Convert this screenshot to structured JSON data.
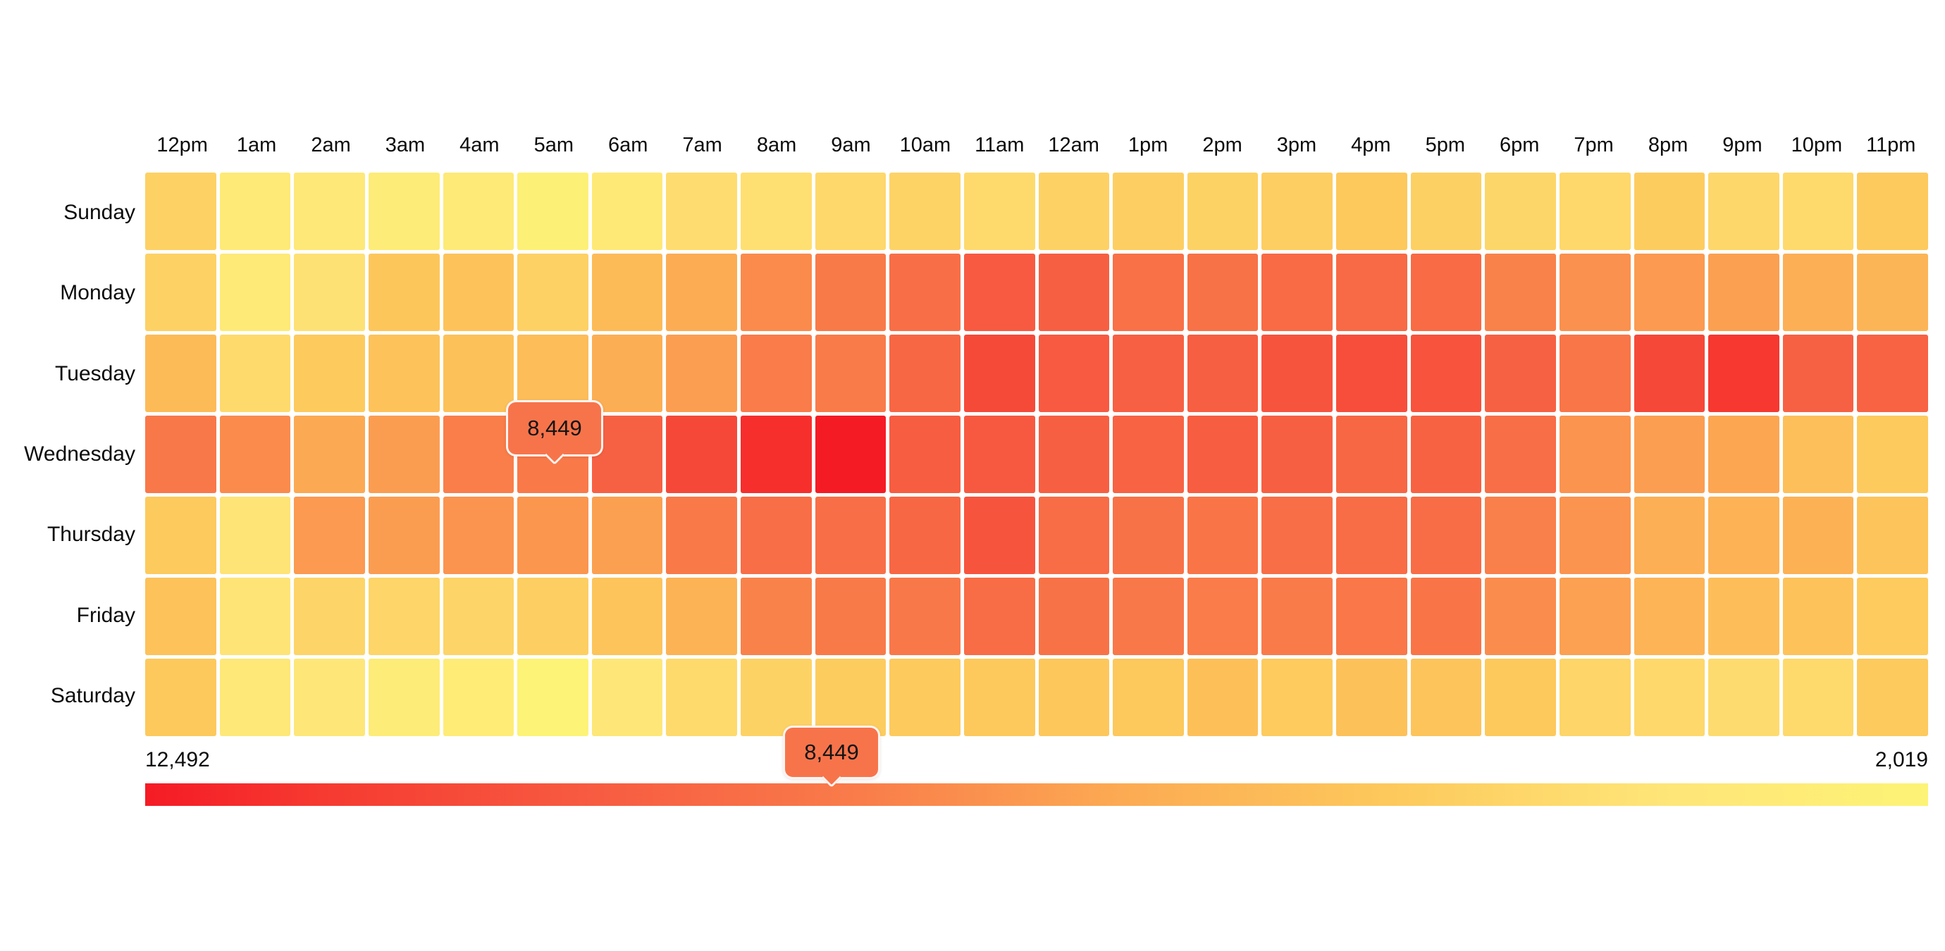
{
  "page": {
    "background": "#ffffff"
  },
  "legend": {
    "max_label": "12,492",
    "min_label": "2,019",
    "tooltip_value": "8,449"
  },
  "cell_tooltip": {
    "value": "8,449"
  },
  "colors": {
    "tooltip_bg": "#f7744b",
    "tooltip_border": "rgba(255,255,255,0.92)",
    "grid_gap": "#ffffff",
    "scale_stops": [
      [
        0.0,
        "#fdf376"
      ],
      [
        0.15,
        "#fee578"
      ],
      [
        0.3,
        "#fdc95c"
      ],
      [
        0.45,
        "#fcab53"
      ],
      [
        0.6,
        "#f97c4a"
      ],
      [
        0.75,
        "#f75b41"
      ],
      [
        0.9,
        "#f63a31"
      ],
      [
        1.0,
        "#f51b25"
      ]
    ]
  },
  "chart_data": {
    "type": "heatmap",
    "title": "",
    "x_labels": [
      "12pm",
      "1am",
      "2am",
      "3am",
      "4am",
      "5am",
      "6am",
      "7am",
      "8am",
      "9am",
      "10am",
      "11am",
      "12am",
      "1pm",
      "2pm",
      "3pm",
      "4pm",
      "5pm",
      "6pm",
      "7pm",
      "8pm",
      "9pm",
      "10pm",
      "11pm"
    ],
    "y_labels": [
      "Sunday",
      "Monday",
      "Tuesday",
      "Wednesday",
      "Thursday",
      "Friday",
      "Saturday"
    ],
    "value_range": [
      2019,
      12492
    ],
    "color_mapping": "high values red, low values yellow",
    "series": [
      {
        "name": "Sunday",
        "values": [
          4700,
          3000,
          3300,
          2800,
          3000,
          2350,
          3100,
          4100,
          3900,
          4300,
          4600,
          4200,
          4700,
          4800,
          4650,
          4900,
          5200,
          4750,
          4450,
          4300,
          5000,
          4350,
          4250,
          5100
        ]
      },
      {
        "name": "Monday",
        "values": [
          4700,
          3000,
          3800,
          5300,
          5450,
          4700,
          5900,
          6700,
          7800,
          8400,
          8900,
          9900,
          9700,
          8850,
          8800,
          9100,
          9200,
          9100,
          8100,
          7600,
          7300,
          7100,
          6500,
          6200
        ]
      },
      {
        "name": "Tuesday",
        "values": [
          5900,
          4200,
          5100,
          5550,
          5600,
          5800,
          6550,
          7150,
          8300,
          8350,
          9300,
          10700,
          9900,
          9650,
          9700,
          10200,
          10500,
          10250,
          9600,
          8600,
          10800,
          11500,
          9600,
          9500
        ]
      },
      {
        "name": "Wednesday",
        "values": [
          8500,
          7800,
          6800,
          7200,
          8250,
          8449,
          9600,
          10800,
          11800,
          12492,
          9800,
          9950,
          9700,
          9500,
          9800,
          9700,
          9300,
          9550,
          8950,
          7500,
          7150,
          6900,
          5700,
          5100
        ]
      },
      {
        "name": "Thursday",
        "values": [
          5100,
          3700,
          7300,
          7200,
          7500,
          7450,
          7100,
          8450,
          8950,
          8900,
          9300,
          10200,
          9050,
          8800,
          8650,
          8950,
          9050,
          9000,
          8200,
          7500,
          6500,
          6350,
          6400,
          5400
        ]
      },
      {
        "name": "Friday",
        "values": [
          5550,
          3650,
          4550,
          4500,
          4520,
          4800,
          5400,
          6300,
          8100,
          8400,
          8500,
          9050,
          8800,
          8500,
          8300,
          8350,
          8550,
          8650,
          7750,
          7050,
          6250,
          5750,
          5550,
          5050
        ]
      },
      {
        "name": "Saturday",
        "values": [
          5150,
          3200,
          3400,
          2800,
          2850,
          2019,
          3400,
          4200,
          4650,
          5000,
          5100,
          5150,
          5250,
          5200,
          5650,
          5050,
          5600,
          5400,
          5150,
          4500,
          4300,
          4150,
          4250,
          5100
        ]
      }
    ],
    "highlighted_cell": {
      "day": "Wednesday",
      "hour": "5am",
      "value": 8449
    },
    "legend": {
      "orientation": "horizontal",
      "max": 12492,
      "min": 2019,
      "marker_value": 8449,
      "position": "bottom"
    }
  }
}
